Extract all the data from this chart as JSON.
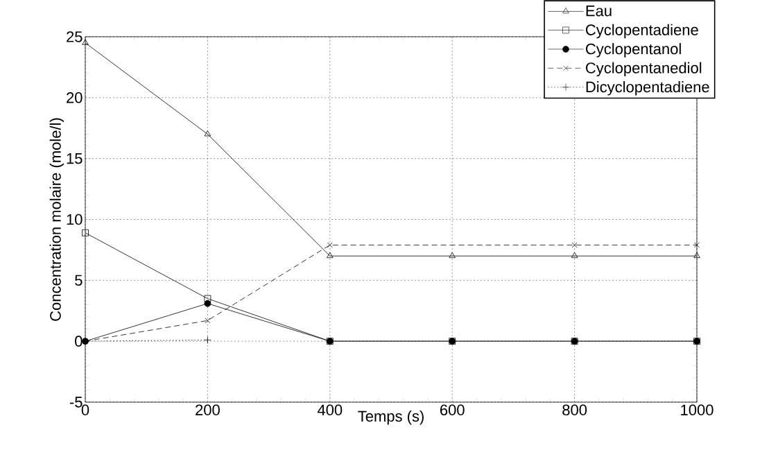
{
  "chart_data": {
    "type": "line",
    "xlabel": "Temps (s)",
    "ylabel": "Concentration molaire (mole/l)",
    "x": [
      0,
      200,
      400,
      600,
      800,
      1000
    ],
    "series": [
      {
        "name": "Eau",
        "color": "#000000",
        "marker": "triangle",
        "line_style": "solid",
        "values": [
          24.5,
          17,
          7,
          7,
          7,
          7
        ]
      },
      {
        "name": "Cyclopentadiene",
        "color": "#000000",
        "marker": "square",
        "line_style": "solid",
        "values": [
          8.9,
          3.5,
          0,
          0,
          0,
          0
        ]
      },
      {
        "name": "Cyclopentanol",
        "color": "#000000",
        "marker": "circle",
        "line_style": "solid",
        "values": [
          0,
          3.1,
          0,
          0,
          0,
          0
        ]
      },
      {
        "name": "Cyclopentanediol",
        "color": "#000000",
        "marker": "cross",
        "line_style": "dashed",
        "x": [
          0,
          200,
          400,
          800,
          1000
        ],
        "values": [
          0,
          1.7,
          7.9,
          7.9,
          7.9
        ]
      },
      {
        "name": "Dicyclopentadiene",
        "color": "#000000",
        "marker": "plus",
        "line_style": "dotted",
        "x": [
          0,
          200
        ],
        "values": [
          0,
          0.1
        ]
      }
    ],
    "xlim": [
      0,
      1000
    ],
    "xticks": [
      0,
      200,
      400,
      600,
      800,
      1000
    ],
    "ylim": [
      -5,
      25
    ],
    "yticks": [
      -5,
      0,
      5,
      10,
      15,
      20,
      25
    ],
    "grid": true,
    "legend": "top right"
  }
}
